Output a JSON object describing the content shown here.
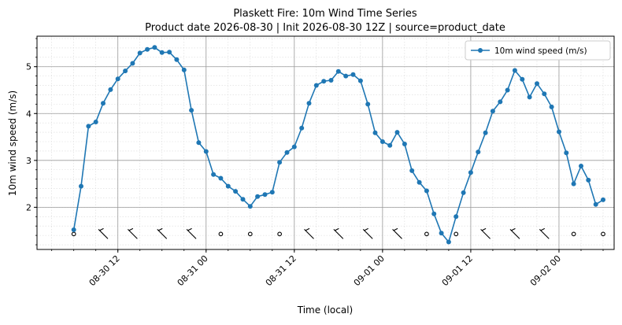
{
  "chart_data": {
    "type": "line",
    "title_line1": "Plaskett Fire: 10m Wind Time Series",
    "title_line2": "Product date 2026-08-30 | Init 2026-08-30 12Z | source=product_date",
    "xlabel": "Time (local)",
    "ylabel": "10m wind speed (m/s)",
    "ylim": [
      1.1,
      5.65
    ],
    "yticks": [
      2,
      3,
      4,
      5
    ],
    "xlim": [
      "2026-08-30 01:00",
      "2026-09-02 07:30"
    ],
    "xticks": [
      {
        "t": "2026-08-30 12:00",
        "label": "08-30 12"
      },
      {
        "t": "2026-08-31 00:00",
        "label": "08-31 00"
      },
      {
        "t": "2026-08-31 12:00",
        "label": "08-31 12"
      },
      {
        "t": "2026-09-01 00:00",
        "label": "09-01 00"
      },
      {
        "t": "2026-09-01 12:00",
        "label": "09-01 12"
      },
      {
        "t": "2026-09-02 00:00",
        "label": "09-02 00"
      }
    ],
    "grid": true,
    "legend_position": "top-right",
    "series": [
      {
        "name": "10m wind speed (m/s)",
        "color": "#1f77b4",
        "start": "2026-08-30 06:00",
        "step_hours": 1,
        "values": [
          1.52,
          2.45,
          3.73,
          3.82,
          4.22,
          4.51,
          4.74,
          4.91,
          5.07,
          5.29,
          5.37,
          5.41,
          5.3,
          5.31,
          5.15,
          4.93,
          4.07,
          3.38,
          3.19,
          2.7,
          2.62,
          2.45,
          2.34,
          2.17,
          2.02,
          2.23,
          2.27,
          2.32,
          2.96,
          3.17,
          3.29,
          3.69,
          4.22,
          4.6,
          4.69,
          4.71,
          4.9,
          4.8,
          4.83,
          4.7,
          4.2,
          3.59,
          3.4,
          3.32,
          3.6,
          3.35,
          2.78,
          2.53,
          2.35,
          1.86,
          1.45,
          1.26,
          1.8,
          2.31,
          2.74,
          3.18,
          3.59,
          4.05,
          4.25,
          4.5,
          4.92,
          4.73,
          4.35,
          4.64,
          4.42,
          4.14,
          3.61,
          3.16,
          2.5,
          2.88,
          2.58,
          2.06,
          2.16
        ]
      }
    ],
    "wind_barbs": {
      "y": 1.43,
      "start": "2026-08-30 06:00",
      "step_hours": 4,
      "kinds": [
        "calm",
        "barb",
        "barb",
        "barb",
        "barb",
        "calm",
        "calm",
        "calm",
        "barb",
        "barb",
        "barb",
        "barb",
        "calm",
        "calm",
        "barb",
        "barb",
        "barb",
        "calm",
        "calm"
      ]
    }
  }
}
